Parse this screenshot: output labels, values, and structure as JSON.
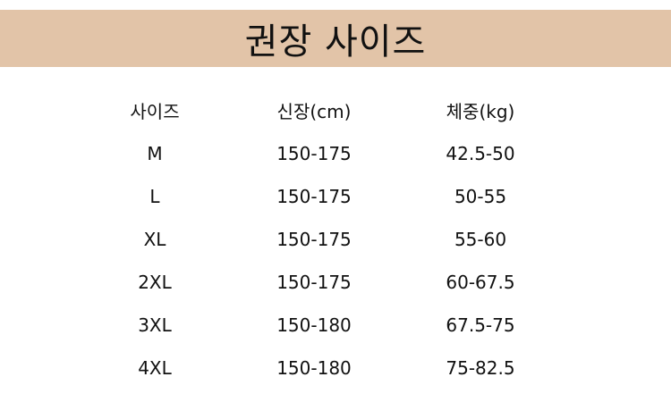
{
  "title": "권장 사이즈",
  "colors": {
    "banner": "#e2c4a8",
    "text": "#111111"
  },
  "table": {
    "headers": [
      "사이즈",
      "신장(cm)",
      "체중(kg)"
    ],
    "rows": [
      [
        "M",
        "150-175",
        "42.5-50"
      ],
      [
        "L",
        "150-175",
        "50-55"
      ],
      [
        "XL",
        "150-175",
        "55-60"
      ],
      [
        "2XL",
        "150-175",
        "60-67.5"
      ],
      [
        "3XL",
        "150-180",
        "67.5-75"
      ],
      [
        "4XL",
        "150-180",
        "75-82.5"
      ]
    ]
  }
}
